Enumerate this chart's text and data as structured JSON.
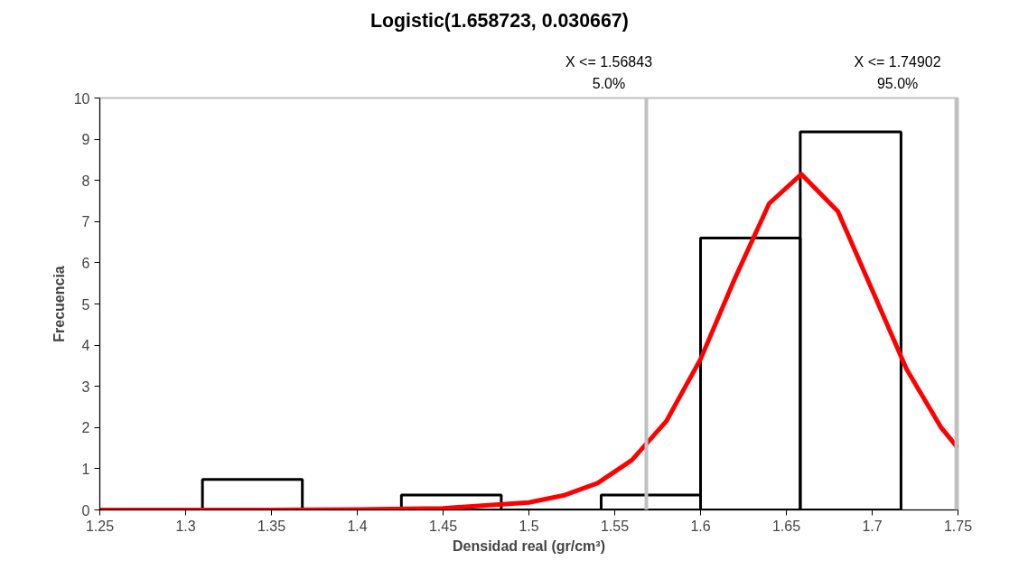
{
  "chart_data": {
    "type": "histogram",
    "title": "Logistic(1.658723, 0.030667)",
    "xlabel": "Densidad real (gr/cm³)",
    "ylabel": "Frecuencia",
    "bins": [
      1.3098,
      1.368,
      1.4257,
      1.4839,
      1.5421,
      1.6,
      1.6581,
      1.7168
    ],
    "values": [
      0.74,
      0,
      0.36,
      0,
      0.36,
      6.6,
      9.18
    ],
    "color": "#000000",
    "series": [
      {
        "type": "line",
        "color": "#ff0000",
        "x": [
          1.25,
          1.3,
          1.35,
          1.4,
          1.45,
          1.5,
          1.52,
          1.54,
          1.56,
          1.58,
          1.6,
          1.62,
          1.64,
          1.6587,
          1.68,
          1.7,
          1.72,
          1.74,
          1.75
        ],
        "values": [
          0,
          0,
          0,
          0.01,
          0.04,
          0.18,
          0.35,
          0.65,
          1.21,
          2.15,
          3.66,
          5.62,
          7.44,
          8.15,
          7.25,
          5.34,
          3.42,
          2.01,
          1.5
        ]
      }
    ],
    "ref_lines": [
      {
        "axis": "x",
        "value": 1.56843,
        "label": "X <= 1.56843\n5.0%",
        "color": "#c0c0c0"
      },
      {
        "axis": "x",
        "value": 1.74902,
        "label": "X <= 1.74902\n95.0%",
        "color": "#c0c0c0"
      }
    ],
    "xlim": [
      1.25,
      1.75
    ],
    "xticks": [
      1.25,
      1.3,
      1.35,
      1.4,
      1.45,
      1.5,
      1.55,
      1.6,
      1.65,
      1.7,
      1.75
    ],
    "ylim": [
      0,
      10
    ],
    "yticks": [
      0,
      1,
      2,
      3,
      4,
      5,
      6,
      7,
      8,
      9,
      10
    ],
    "grid": false
  }
}
